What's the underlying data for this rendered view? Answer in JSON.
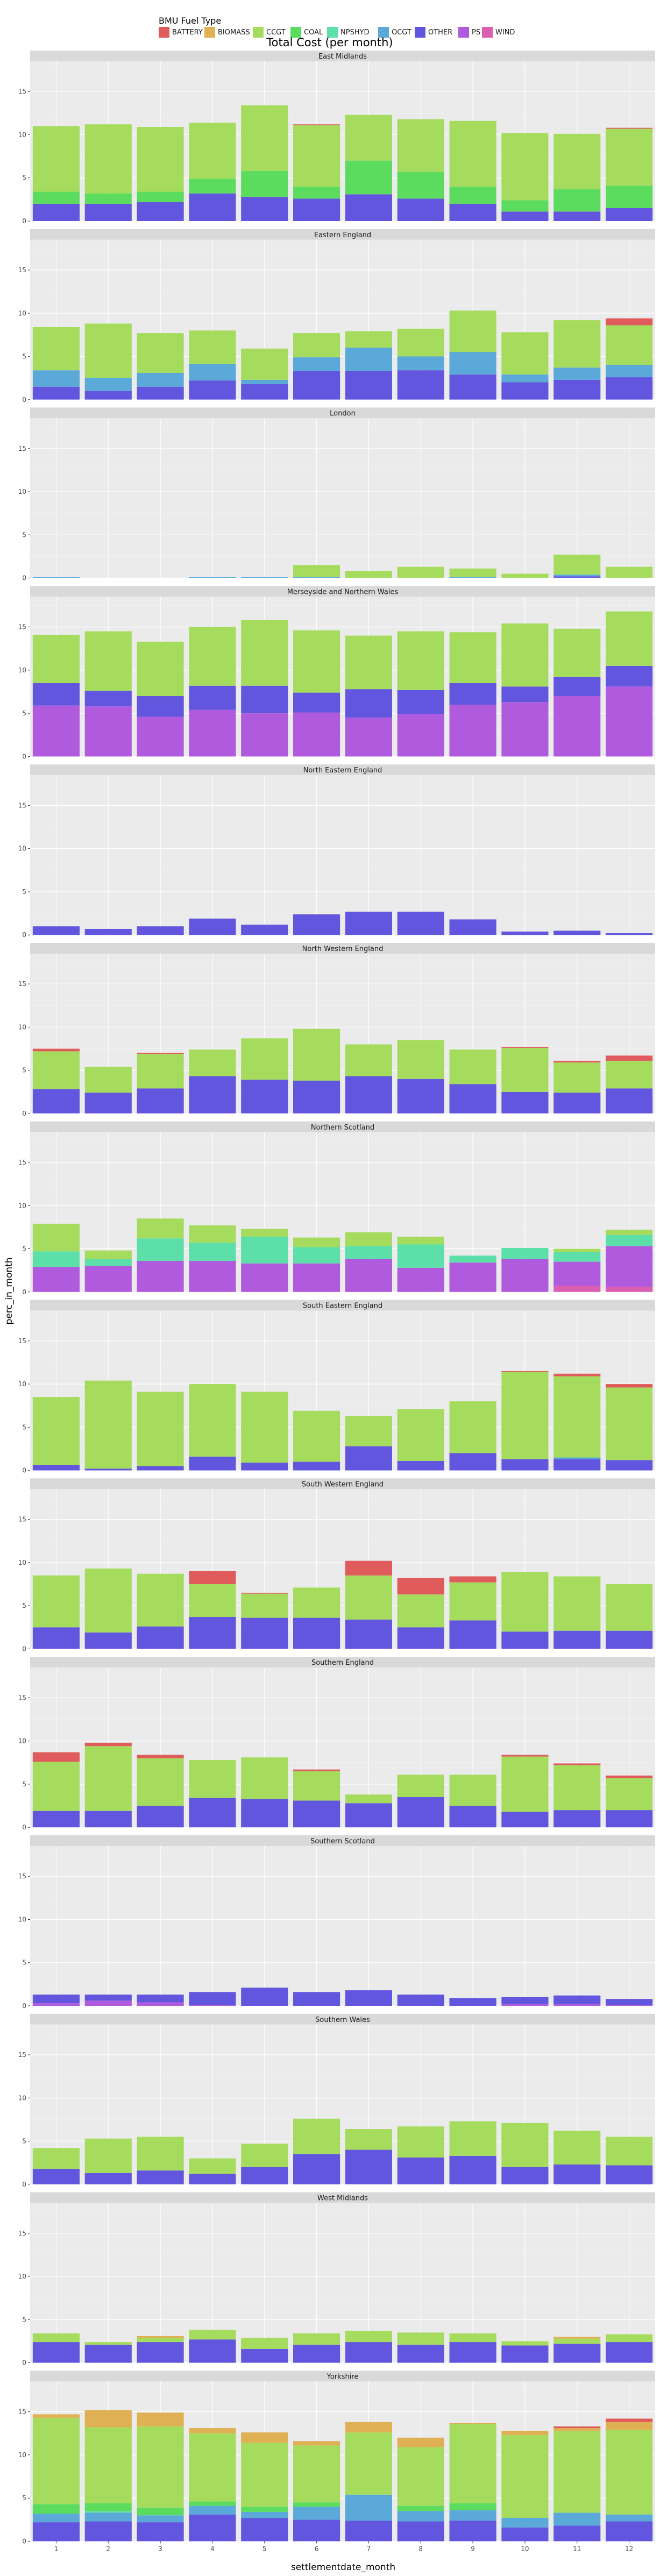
{
  "chart_data": {
    "type": "bar",
    "stacked": true,
    "title": "Total Cost (per month)",
    "xlabel": "settlementdate_month",
    "ylabel": "perc_in_month",
    "categories": [
      "1",
      "2",
      "3",
      "4",
      "5",
      "6",
      "7",
      "8",
      "9",
      "10",
      "11",
      "12"
    ],
    "ylim": [
      0,
      18.5
    ],
    "yticks": [
      "0",
      "5",
      "10",
      "15"
    ],
    "ytick_values": [
      0,
      5,
      10,
      15
    ],
    "grid": true,
    "legend": {
      "title": "BMU Fuel Type",
      "placement": "top",
      "entries": [
        "BATTERY",
        "BIOMASS",
        "CCGT",
        "COAL",
        "NPSHYD",
        "OCGT",
        "OTHER",
        "PS",
        "WIND"
      ]
    },
    "colors": {
      "BATTERY": "#e05c5c",
      "BIOMASS": "#e0b055",
      "CCGT": "#a6dc5e",
      "COAL": "#5bdc5f",
      "NPSHYD": "#5ddfaa",
      "OCGT": "#5aa9d9",
      "OTHER": "#6256de",
      "PS": "#b05ade",
      "WIND": "#db5eb2"
    },
    "stack_order": [
      "WIND",
      "PS",
      "OTHER",
      "OCGT",
      "NPSHYD",
      "COAL",
      "CCGT",
      "BIOMASS",
      "BATTERY"
    ],
    "panels": [
      {
        "region": "East Midlands",
        "series": {
          "OTHER": [
            2.0,
            2.0,
            2.2,
            3.2,
            2.8,
            2.6,
            3.1,
            2.6,
            2.0,
            1.1,
            1.1,
            1.5
          ],
          "COAL": [
            1.4,
            1.2,
            1.2,
            1.7,
            3.0,
            1.4,
            3.9,
            3.1,
            2.0,
            1.3,
            2.6,
            2.6
          ],
          "CCGT": [
            7.6,
            8.0,
            7.5,
            6.5,
            7.6,
            7.1,
            5.3,
            6.1,
            7.6,
            7.8,
            6.4,
            6.6
          ],
          "BATTERY": [
            0,
            0,
            0,
            0,
            0,
            0.1,
            0,
            0,
            0,
            0,
            0,
            0.1
          ]
        }
      },
      {
        "region": "Eastern England",
        "series": {
          "OTHER": [
            1.5,
            1.0,
            1.5,
            2.2,
            1.8,
            3.3,
            3.3,
            3.4,
            2.9,
            2.0,
            2.3,
            2.6
          ],
          "OCGT": [
            1.9,
            1.5,
            1.6,
            1.9,
            0.5,
            1.6,
            2.7,
            1.6,
            2.6,
            0.9,
            1.4,
            1.4
          ],
          "CCGT": [
            5.0,
            6.3,
            4.6,
            3.9,
            3.6,
            2.8,
            1.9,
            3.2,
            4.8,
            4.9,
            5.5,
            4.6
          ],
          "BATTERY": [
            0,
            0,
            0,
            0,
            0,
            0,
            0,
            0,
            0,
            0,
            0,
            0.8
          ]
        }
      },
      {
        "region": "London",
        "series": {
          "OTHER": [
            0,
            0,
            0,
            0,
            0,
            0,
            0,
            0,
            0,
            0,
            0.2,
            0
          ],
          "OCGT": [
            0.1,
            0,
            0,
            0.1,
            0.1,
            0.1,
            0,
            0,
            0.1,
            0,
            0.2,
            0
          ],
          "CCGT": [
            0,
            0,
            0,
            0,
            0,
            1.4,
            0.8,
            1.3,
            1.0,
            0.5,
            2.3,
            1.3
          ]
        }
      },
      {
        "region": "Mersey­side and Northern Wales",
        "series": {
          "PS": [
            5.9,
            5.8,
            4.6,
            5.4,
            5.0,
            5.1,
            4.5,
            4.9,
            6.0,
            6.3,
            7.0,
            8.1
          ],
          "OTHER": [
            2.6,
            1.8,
            2.4,
            2.8,
            3.2,
            2.3,
            3.3,
            2.8,
            2.5,
            1.8,
            2.2,
            2.4
          ],
          "CCGT": [
            5.6,
            6.9,
            6.3,
            6.8,
            7.6,
            7.2,
            6.2,
            6.8,
            5.9,
            7.3,
            5.6,
            6.3
          ]
        }
      },
      {
        "region": "North Eastern England",
        "series": {
          "OTHER": [
            1.0,
            0.7,
            1.0,
            1.9,
            1.2,
            2.4,
            2.7,
            2.7,
            1.8,
            0.4,
            0.5,
            0.2
          ]
        }
      },
      {
        "region": "North Western England",
        "series": {
          "OTHER": [
            2.8,
            2.4,
            2.9,
            4.3,
            3.9,
            3.8,
            4.3,
            4.0,
            3.4,
            2.5,
            2.4,
            2.9
          ],
          "CCGT": [
            4.4,
            3.0,
            4.0,
            3.1,
            4.8,
            6.0,
            3.7,
            4.5,
            4.0,
            5.1,
            3.5,
            3.2
          ],
          "BATTERY": [
            0.3,
            0,
            0.1,
            0,
            0,
            0,
            0,
            0,
            0,
            0.1,
            0.2,
            0.6
          ]
        }
      },
      {
        "region": "Northern Scotland",
        "series": {
          "WIND": [
            0,
            0,
            0,
            0,
            0,
            0,
            0,
            0,
            0,
            0,
            0.7,
            0.6
          ],
          "PS": [
            2.9,
            3.0,
            3.6,
            3.6,
            3.3,
            3.3,
            3.8,
            2.8,
            3.4,
            3.8,
            2.8,
            4.7
          ],
          "NPSHYD": [
            1.8,
            0.8,
            2.6,
            2.1,
            3.1,
            1.9,
            1.5,
            2.7,
            0.8,
            1.3,
            1.1,
            1.3
          ],
          "CCGT": [
            3.2,
            1.0,
            2.3,
            2.0,
            0.9,
            1.1,
            1.6,
            0.9,
            0,
            0,
            0.4,
            0.6
          ]
        }
      },
      {
        "region": "South Eastern England",
        "series": {
          "OTHER": [
            0.6,
            0.2,
            0.5,
            1.6,
            0.9,
            1.0,
            2.8,
            1.1,
            2.0,
            1.3,
            1.3,
            1.2
          ],
          "OCGT": [
            0,
            0,
            0,
            0,
            0,
            0,
            0,
            0,
            0,
            0,
            0.2,
            0
          ],
          "CCGT": [
            7.9,
            10.2,
            8.6,
            8.4,
            8.2,
            5.9,
            3.5,
            6.0,
            6.0,
            10.1,
            9.4,
            8.4
          ],
          "BATTERY": [
            0,
            0,
            0,
            0,
            0,
            0,
            0,
            0,
            0,
            0.1,
            0.3,
            0.4
          ]
        }
      },
      {
        "region": "South Western England",
        "series": {
          "OTHER": [
            2.5,
            1.9,
            2.6,
            3.7,
            3.6,
            3.6,
            3.4,
            2.5,
            3.3,
            2.0,
            2.1,
            2.1
          ],
          "CCGT": [
            6.0,
            7.4,
            6.1,
            3.8,
            2.8,
            3.5,
            5.1,
            3.8,
            4.4,
            6.9,
            6.3,
            5.4
          ],
          "BATTERY": [
            0,
            0,
            0,
            1.5,
            0.1,
            0,
            1.7,
            1.9,
            0.7,
            0,
            0,
            0
          ]
        }
      },
      {
        "region": "Southern England",
        "series": {
          "OTHER": [
            1.9,
            1.9,
            2.5,
            3.4,
            3.3,
            3.1,
            2.8,
            3.5,
            2.5,
            1.8,
            2.0,
            2.0
          ],
          "CCGT": [
            5.7,
            7.5,
            5.5,
            4.4,
            4.8,
            3.4,
            1.0,
            2.6,
            3.6,
            6.4,
            5.2,
            3.7
          ],
          "BATTERY": [
            1.1,
            0.4,
            0.4,
            0,
            0,
            0.2,
            0,
            0,
            0,
            0.2,
            0.2,
            0.3
          ]
        }
      },
      {
        "region": "Southern Scotland",
        "series": {
          "PS": [
            0.3,
            0.6,
            0.4,
            0.1,
            0,
            0,
            0,
            0,
            0,
            0.2,
            0.2,
            0.1
          ],
          "OTHER": [
            1.0,
            0.7,
            0.9,
            1.5,
            2.1,
            1.6,
            1.8,
            1.3,
            0.9,
            0.8,
            1.0,
            0.7
          ]
        }
      },
      {
        "region": "Southern Wales",
        "series": {
          "OTHER": [
            1.8,
            1.3,
            1.6,
            1.2,
            2.0,
            3.5,
            4.0,
            3.1,
            3.3,
            2.0,
            2.3,
            2.2
          ],
          "CCGT": [
            2.4,
            4.0,
            3.9,
            1.8,
            2.7,
            4.1,
            2.4,
            3.6,
            4.0,
            5.1,
            3.9,
            3.3
          ]
        }
      },
      {
        "region": "West Midlands",
        "series": {
          "OTHER": [
            2.4,
            2.1,
            2.4,
            2.7,
            1.6,
            2.1,
            2.4,
            2.1,
            2.4,
            2.0,
            2.2,
            2.4
          ],
          "CCGT": [
            1.0,
            0.3,
            0.5,
            1.1,
            1.3,
            1.3,
            1.3,
            1.4,
            1.0,
            0.5,
            0.6,
            0.9
          ],
          "BIOMASS": [
            0,
            0,
            0.2,
            0,
            0,
            0,
            0,
            0,
            0,
            0,
            0.2,
            0
          ]
        }
      },
      {
        "region": "Yorkshire",
        "series": {
          "OTHER": [
            2.2,
            2.3,
            2.2,
            3.1,
            2.7,
            2.5,
            2.4,
            2.3,
            2.4,
            1.6,
            1.8,
            2.3
          ],
          "OCGT": [
            1.0,
            1.0,
            0.8,
            1.0,
            0.7,
            1.5,
            3.0,
            1.2,
            1.2,
            1.1,
            1.5,
            0.8
          ],
          "NPSHYD": [
            0,
            0.2,
            0,
            0,
            0,
            0,
            0,
            0,
            0,
            0,
            0,
            0
          ],
          "COAL": [
            1.1,
            0.9,
            0.9,
            0.5,
            0.6,
            0.5,
            0,
            0.6,
            0.8,
            0,
            0,
            0
          ],
          "CCGT": [
            10.0,
            8.8,
            9.4,
            7.9,
            7.4,
            6.6,
            7.2,
            6.8,
            9.2,
            9.6,
            9.5,
            9.8
          ],
          "BIOMASS": [
            0.4,
            2.0,
            1.6,
            0.6,
            1.2,
            0.5,
            1.2,
            1.1,
            0.1,
            0.5,
            0.3,
            0.9
          ],
          "BATTERY": [
            0,
            0,
            0,
            0,
            0,
            0,
            0,
            0,
            0,
            0,
            0.2,
            0.4
          ]
        }
      }
    ]
  }
}
